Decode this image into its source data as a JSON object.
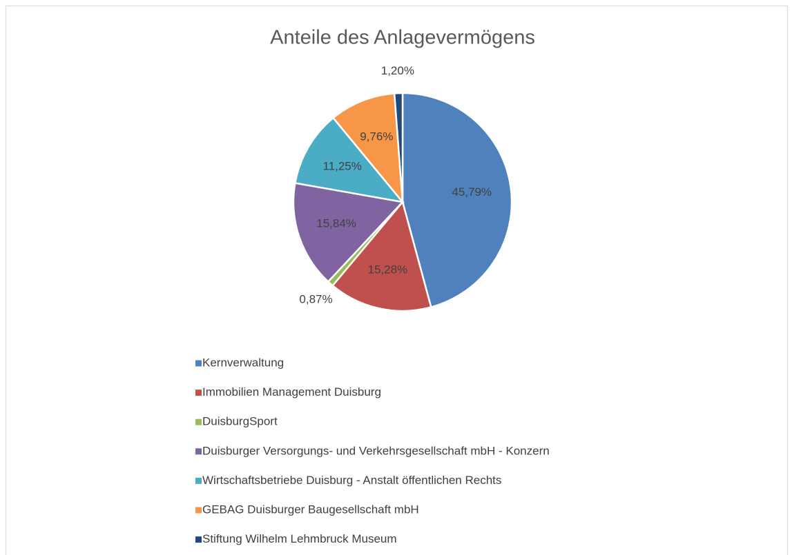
{
  "chart_data": {
    "type": "pie",
    "title": "Anteile des Anlagevermögens",
    "categories": [
      "Kernverwaltung",
      "Immobilien Management Duisburg",
      "DuisburgSport",
      "Duisburger Versorgungs- und Verkehrsgesellschaft mbH - Konzern",
      "Wirtschaftsbetriebe Duisburg - Anstalt öffentlichen Rechts",
      "GEBAG Duisburger Baugesellschaft mbH",
      "Stiftung Wilhelm Lehmbruck Museum"
    ],
    "values": [
      45.79,
      15.28,
      0.87,
      15.84,
      11.25,
      9.76,
      1.2
    ],
    "value_labels": [
      "45,79%",
      "15,28%",
      "0,87%",
      "15,84%",
      "11,25%",
      "9,76%",
      "1,20%"
    ],
    "colors": [
      "#4f81bd",
      "#c0504d",
      "#9bbb59",
      "#8064a2",
      "#4bacc6",
      "#f79646",
      "#1f497d"
    ],
    "legend": "bottom"
  }
}
